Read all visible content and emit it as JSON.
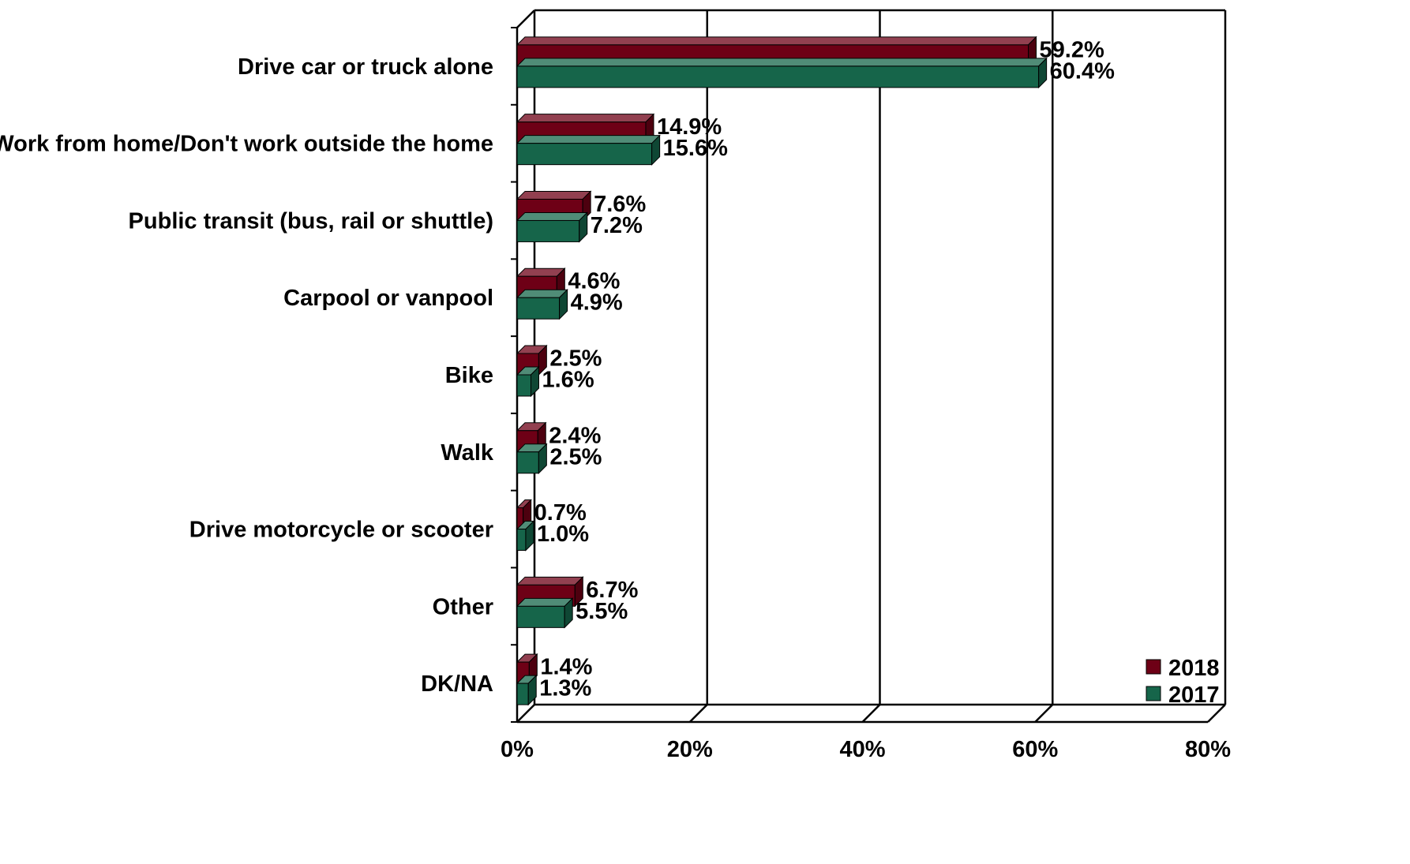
{
  "chart_data": {
    "type": "bar",
    "orientation": "horizontal",
    "style": "3d",
    "categories": [
      "Drive car or truck alone",
      "Work from home/Don't work outside the home",
      "Public transit (bus, rail or shuttle)",
      "Carpool or vanpool",
      "Bike",
      "Walk",
      "Drive motorcycle or scooter",
      "Other",
      "DK/NA"
    ],
    "series": [
      {
        "name": "2018",
        "color": "#6e0016",
        "values": [
          59.2,
          14.9,
          7.6,
          4.6,
          2.5,
          2.4,
          0.7,
          6.7,
          1.4
        ],
        "labels": [
          "59.2%",
          "14.9%",
          "7.6%",
          "4.6%",
          "2.5%",
          "2.4%",
          "0.7%",
          "6.7%",
          "1.4%"
        ]
      },
      {
        "name": "2017",
        "color": "#16654a",
        "values": [
          60.4,
          15.6,
          7.2,
          4.9,
          1.6,
          2.5,
          1.0,
          5.5,
          1.3
        ],
        "labels": [
          "60.4%",
          "15.6%",
          "7.2%",
          "4.9%",
          "1.6%",
          "2.5%",
          "1.0%",
          "5.5%",
          "1.3%"
        ]
      }
    ],
    "xlim": [
      0,
      80
    ],
    "x_ticks": [
      0,
      20,
      40,
      60,
      80
    ],
    "x_tick_labels": [
      "0%",
      "20%",
      "40%",
      "60%",
      "80%"
    ],
    "grid": true,
    "legend_position": "bottom-right",
    "title": "",
    "xlabel": "",
    "ylabel": ""
  }
}
